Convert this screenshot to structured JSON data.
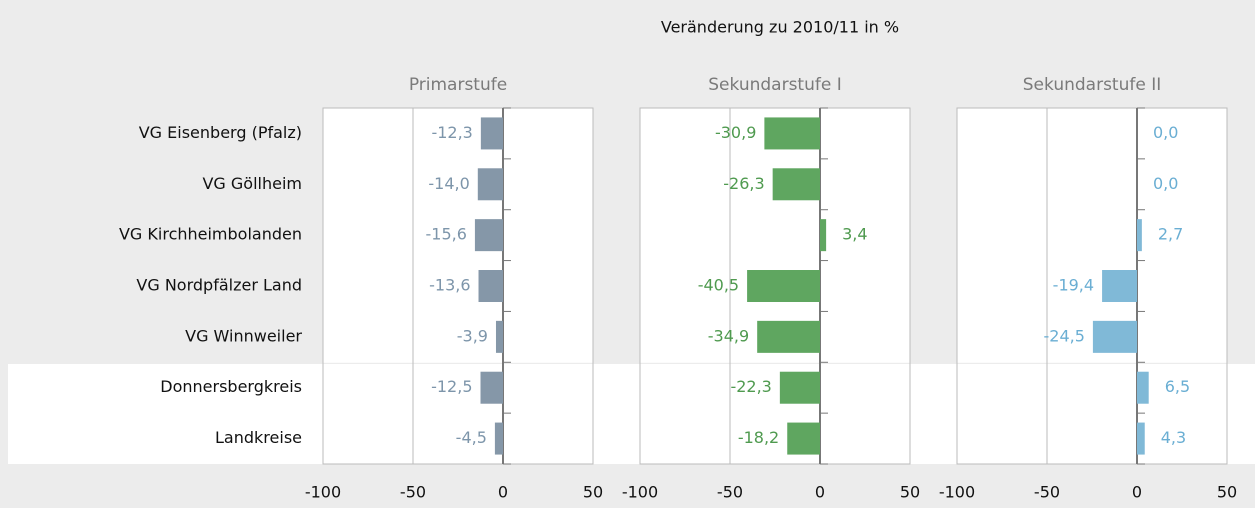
{
  "chart_data": {
    "type": "bar",
    "orientation": "horizontal",
    "title": "Veränderung zu 2010/11 in %",
    "categories": [
      "VG Eisenberg (Pfalz)",
      "VG Göllheim",
      "VG Kirchheimbolanden",
      "VG Nordpfälzer Land",
      "VG Winnweiler",
      "Donnersbergkreis",
      "Landkreise"
    ],
    "series": [
      {
        "name": "Primarstufe",
        "color": "#8597a8",
        "label_color": "#7d95aa",
        "values": [
          -12.3,
          -14.0,
          -15.6,
          -13.6,
          -3.9,
          -12.5,
          -4.5
        ],
        "value_labels": [
          "-12,3",
          "-14,0",
          "-15,6",
          "-13,6",
          "-3,9",
          "-12,5",
          "-4,5"
        ]
      },
      {
        "name": "Sekundarstufe I",
        "color": "#5fa660",
        "label_color": "#4f9a4f",
        "values": [
          -30.9,
          -26.3,
          3.4,
          -40.5,
          -34.9,
          -22.3,
          -18.2
        ],
        "value_labels": [
          "-30,9",
          "-26,3",
          "3,4",
          "-40,5",
          "-34,9",
          "-22,3",
          "-18,2"
        ]
      },
      {
        "name": "Sekundarstufe II",
        "color": "#80b9d7",
        "label_color": "#6aaed3",
        "values": [
          0.0,
          0.0,
          2.7,
          -19.4,
          -24.5,
          6.5,
          4.3
        ],
        "value_labels": [
          "0,0",
          "0,0",
          "2,7",
          "-19,4",
          "-24,5",
          "6,5",
          "4,3"
        ]
      }
    ],
    "xlim": [
      -100,
      50
    ],
    "xticks": [
      -100,
      -50,
      0,
      50
    ],
    "grid": true
  }
}
